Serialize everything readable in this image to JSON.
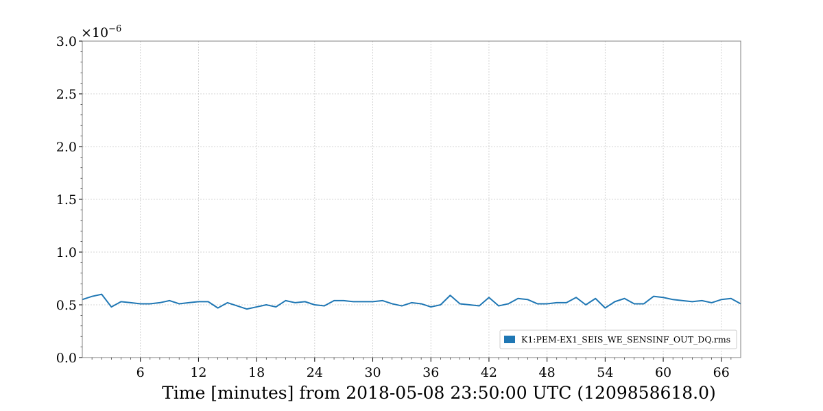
{
  "chart_data": {
    "type": "line",
    "xlabel": "Time [minutes] from 2018-05-08 23:50:00 UTC (1209858618.0)",
    "ylabel": "",
    "xlim": [
      0,
      68
    ],
    "ylim": [
      0,
      3.0
    ],
    "y_multiplier_label": "×10",
    "y_multiplier_exponent": "−6",
    "x_ticks": [
      6,
      12,
      18,
      24,
      30,
      36,
      42,
      48,
      54,
      60,
      66
    ],
    "x_tick_labels": [
      "6",
      "12",
      "18",
      "24",
      "30",
      "36",
      "42",
      "48",
      "54",
      "60",
      "66"
    ],
    "y_ticks": [
      0,
      0.5,
      1.0,
      1.5,
      2.0,
      2.5,
      3.0
    ],
    "y_tick_labels": [
      "0.0",
      "0.5",
      "1.0",
      "1.5",
      "2.0",
      "2.5",
      "3.0"
    ],
    "grid": true,
    "legend_position": "lower-right",
    "series": [
      {
        "name": "K1:PEM-EX1_SEIS_WE_SENSINF_OUT_DQ.rms",
        "color": "#1f77b4",
        "x": [
          0,
          1,
          2,
          3,
          4,
          5,
          6,
          7,
          8,
          9,
          10,
          11,
          12,
          13,
          14,
          15,
          16,
          17,
          18,
          19,
          20,
          21,
          22,
          23,
          24,
          25,
          26,
          27,
          28,
          29,
          30,
          31,
          32,
          33,
          34,
          35,
          36,
          37,
          38,
          39,
          40,
          41,
          42,
          43,
          44,
          45,
          46,
          47,
          48,
          49,
          50,
          51,
          52,
          53,
          54,
          55,
          56,
          57,
          58,
          59,
          60,
          61,
          62,
          63,
          64,
          65,
          66,
          67,
          68
        ],
        "y": [
          0.55,
          0.58,
          0.6,
          0.48,
          0.53,
          0.52,
          0.51,
          0.51,
          0.52,
          0.54,
          0.51,
          0.52,
          0.53,
          0.53,
          0.47,
          0.52,
          0.49,
          0.46,
          0.48,
          0.5,
          0.48,
          0.54,
          0.52,
          0.53,
          0.5,
          0.49,
          0.54,
          0.54,
          0.53,
          0.53,
          0.53,
          0.54,
          0.51,
          0.49,
          0.52,
          0.51,
          0.48,
          0.5,
          0.59,
          0.51,
          0.5,
          0.49,
          0.57,
          0.49,
          0.51,
          0.56,
          0.55,
          0.51,
          0.51,
          0.52,
          0.52,
          0.57,
          0.5,
          0.56,
          0.47,
          0.53,
          0.56,
          0.51,
          0.51,
          0.58,
          0.57,
          0.55,
          0.54,
          0.53,
          0.54,
          0.52,
          0.55,
          0.56,
          0.51
        ]
      }
    ]
  }
}
